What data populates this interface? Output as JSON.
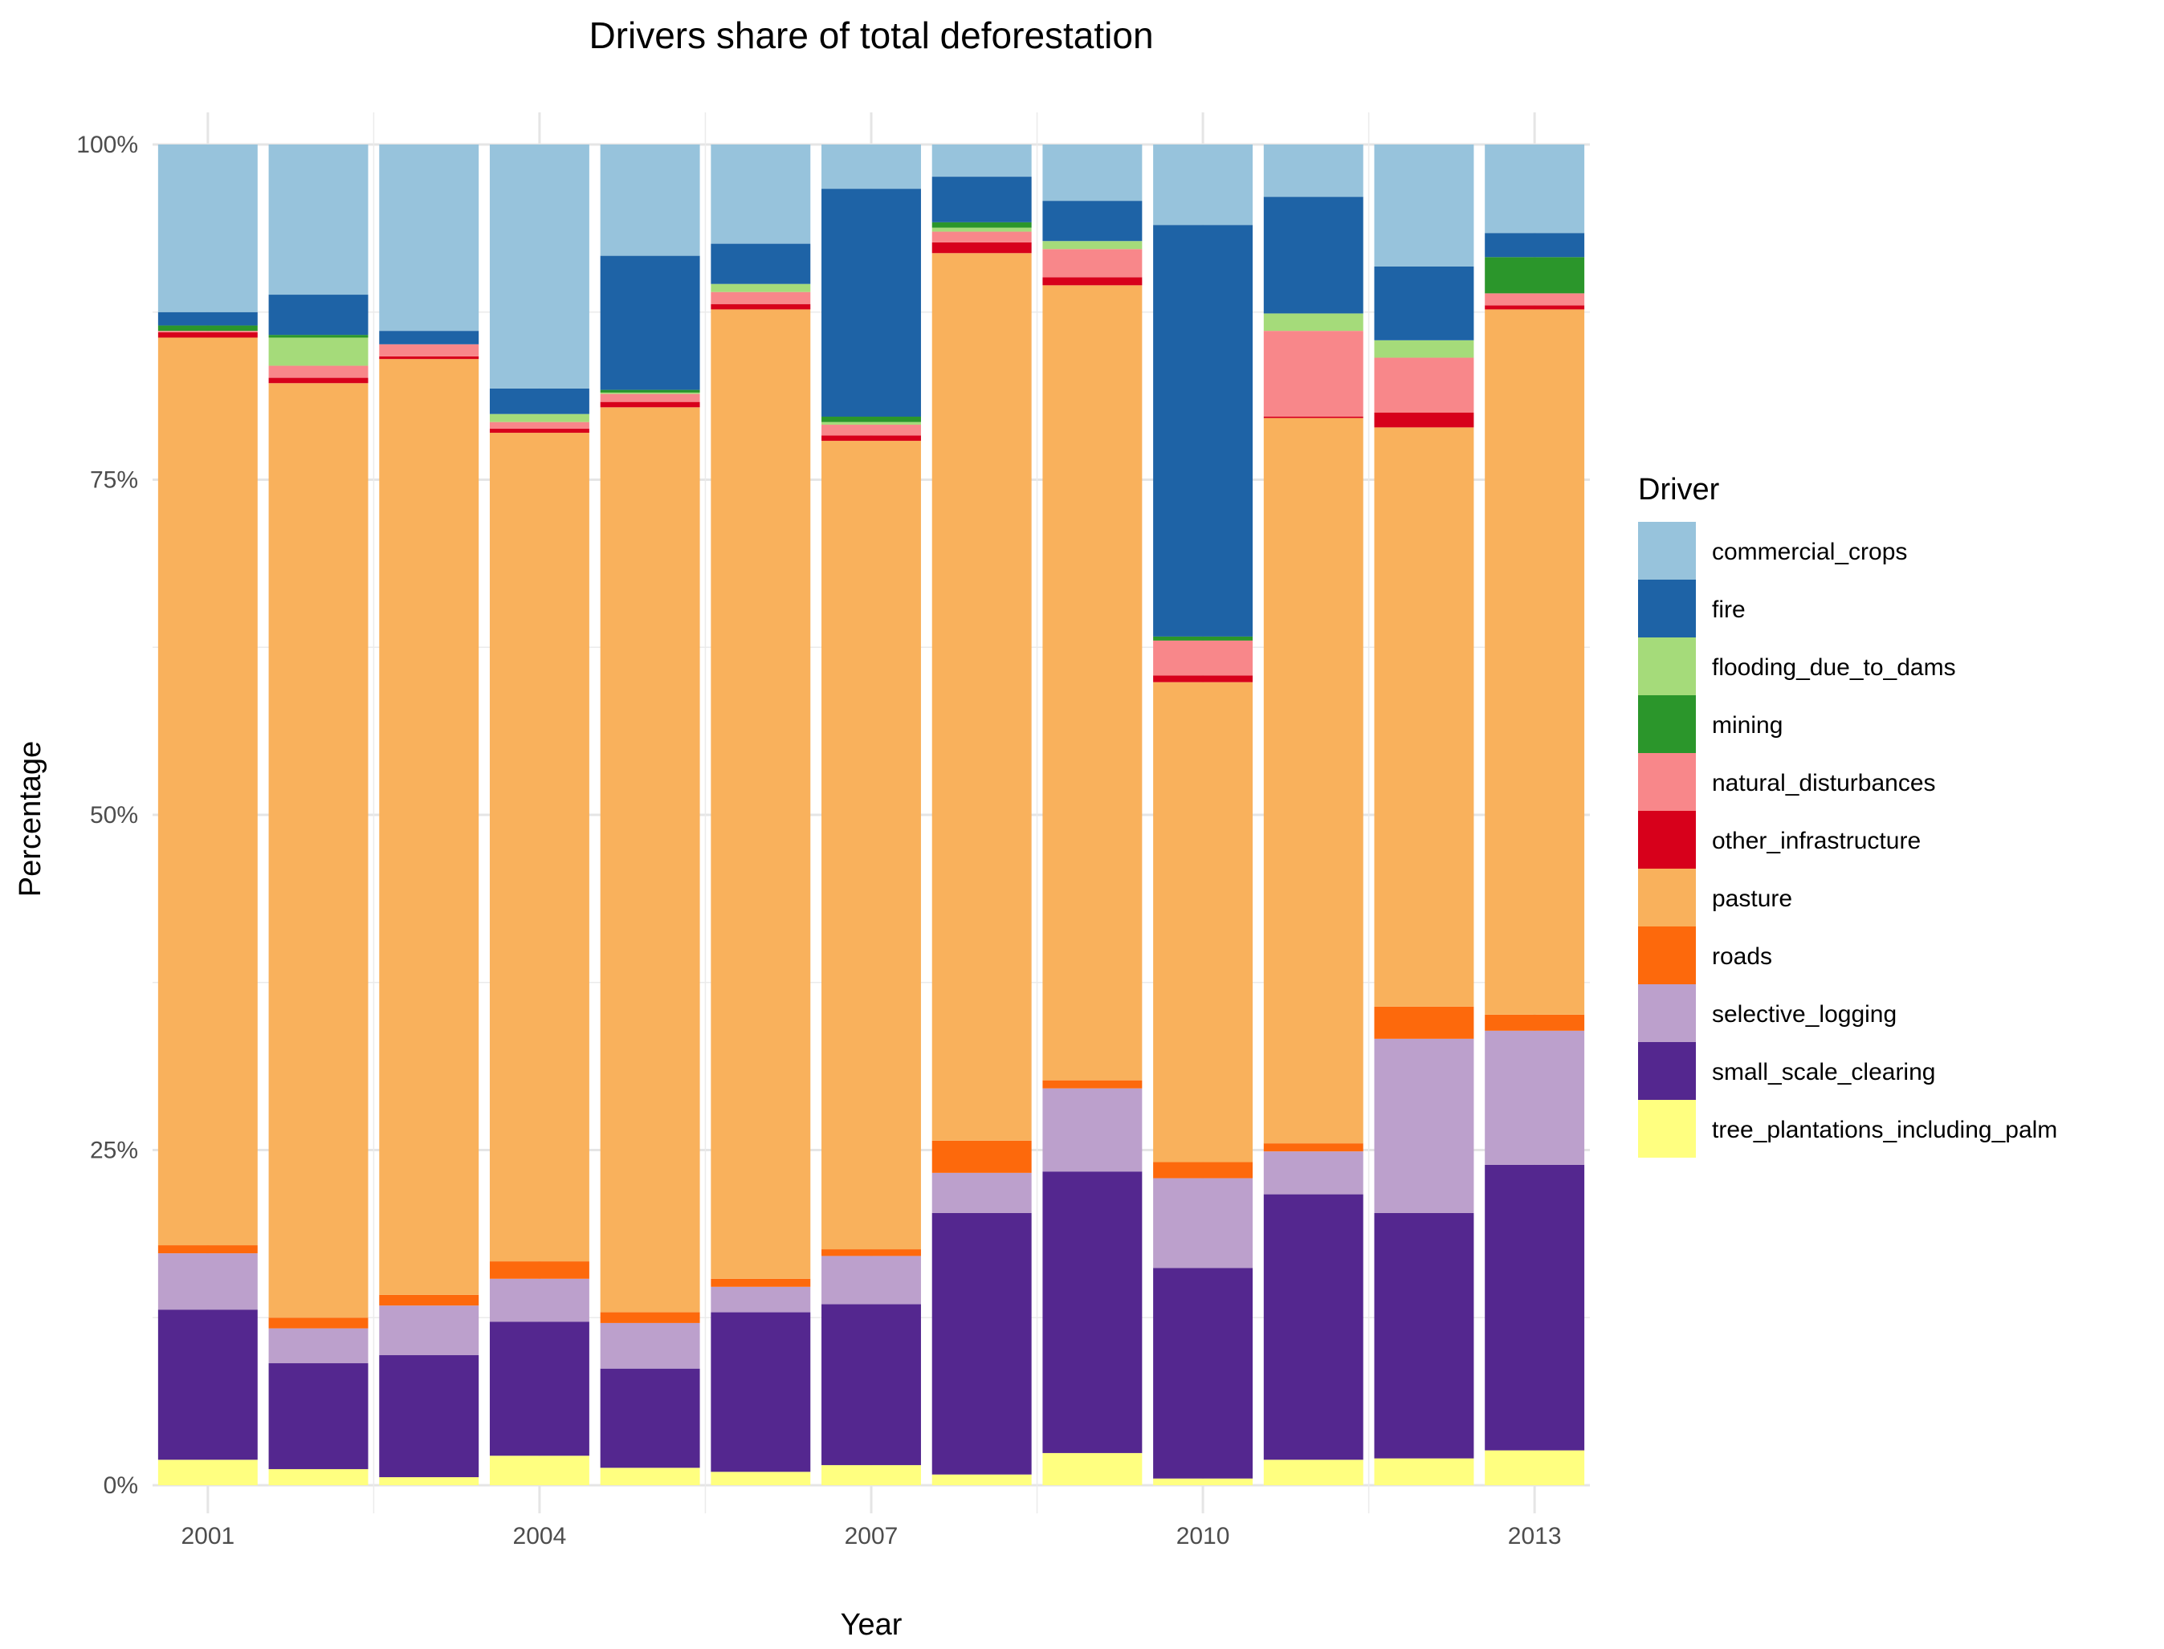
{
  "chart_data": {
    "type": "bar",
    "stacked": true,
    "title": "Drivers share of total deforestation",
    "xlabel": "Year",
    "ylabel": "Percentage",
    "ylim": [
      0,
      1
    ],
    "yticks": [
      0,
      0.25,
      0.5,
      0.75,
      1
    ],
    "ytick_labels": [
      "0%",
      "25%",
      "50%",
      "75%",
      "100%"
    ],
    "xlim": [
      2000.5,
      2013.5
    ],
    "xticks": [
      2001,
      2004,
      2007,
      2010,
      2013
    ],
    "xtick_labels": [
      "2001",
      "2004",
      "2007",
      "2010",
      "2013"
    ],
    "x": [
      2001,
      2002,
      2003,
      2004,
      2005,
      2006,
      2007,
      2008,
      2009,
      2010,
      2011,
      2012,
      2013
    ],
    "grid": true,
    "legend_title": "Driver",
    "legend_position": "right",
    "series": [
      {
        "name": "tree_plantations_including_palm",
        "color": "#FFFF80",
        "values": [
          0.019,
          0.012,
          0.006,
          0.022,
          0.013,
          0.01,
          0.015,
          0.008,
          0.024,
          0.005,
          0.019,
          0.02,
          0.026
        ]
      },
      {
        "name": "small_scale_clearing",
        "color": "#54278F",
        "values": [
          0.112,
          0.079,
          0.091,
          0.1,
          0.074,
          0.119,
          0.12,
          0.195,
          0.21,
          0.157,
          0.198,
          0.183,
          0.213
        ]
      },
      {
        "name": "selective_logging",
        "color": "#BCA0CC",
        "values": [
          0.042,
          0.026,
          0.037,
          0.032,
          0.034,
          0.019,
          0.036,
          0.03,
          0.062,
          0.067,
          0.032,
          0.13,
          0.1
        ]
      },
      {
        "name": "roads",
        "color": "#FD690C",
        "values": [
          0.006,
          0.008,
          0.008,
          0.013,
          0.008,
          0.006,
          0.005,
          0.024,
          0.006,
          0.012,
          0.006,
          0.024,
          0.012
        ]
      },
      {
        "name": "pasture",
        "color": "#F9B15C",
        "values": [
          0.677,
          0.697,
          0.698,
          0.618,
          0.675,
          0.723,
          0.603,
          0.662,
          0.593,
          0.358,
          0.541,
          0.432,
          0.526
        ]
      },
      {
        "name": "other_infrastructure",
        "color": "#D7001B",
        "values": [
          0.004,
          0.004,
          0.002,
          0.003,
          0.004,
          0.004,
          0.004,
          0.008,
          0.006,
          0.005,
          0.001,
          0.011,
          0.003
        ]
      },
      {
        "name": "natural_disturbances",
        "color": "#F8878A",
        "values": [
          0.001,
          0.009,
          0.009,
          0.005,
          0.006,
          0.009,
          0.008,
          0.008,
          0.021,
          0.026,
          0.064,
          0.041,
          0.009
        ]
      },
      {
        "name": "flooding_due_to_dams",
        "color": "#A5DB7A",
        "values": [
          0.0,
          0.021,
          0.0,
          0.006,
          0.001,
          0.006,
          0.002,
          0.003,
          0.006,
          0.0,
          0.013,
          0.013,
          0.0
        ]
      },
      {
        "name": "mining",
        "color": "#2B962B",
        "values": [
          0.004,
          0.002,
          0.0,
          0.0,
          0.002,
          0.0,
          0.004,
          0.004,
          0.0,
          0.003,
          0.0,
          0.0,
          0.027
        ]
      },
      {
        "name": "fire",
        "color": "#1E63A6",
        "values": [
          0.01,
          0.03,
          0.01,
          0.019,
          0.1,
          0.03,
          0.17,
          0.034,
          0.03,
          0.307,
          0.087,
          0.055,
          0.018
        ]
      },
      {
        "name": "commercial_crops",
        "color": "#97C3DC",
        "values": [
          0.125,
          0.112,
          0.139,
          0.182,
          0.083,
          0.074,
          0.033,
          0.024,
          0.042,
          0.06,
          0.039,
          0.091,
          0.066
        ]
      }
    ],
    "legend_order": [
      "commercial_crops",
      "fire",
      "flooding_due_to_dams",
      "mining",
      "natural_disturbances",
      "other_infrastructure",
      "pasture",
      "roads",
      "selective_logging",
      "small_scale_clearing",
      "tree_plantations_including_palm"
    ]
  }
}
